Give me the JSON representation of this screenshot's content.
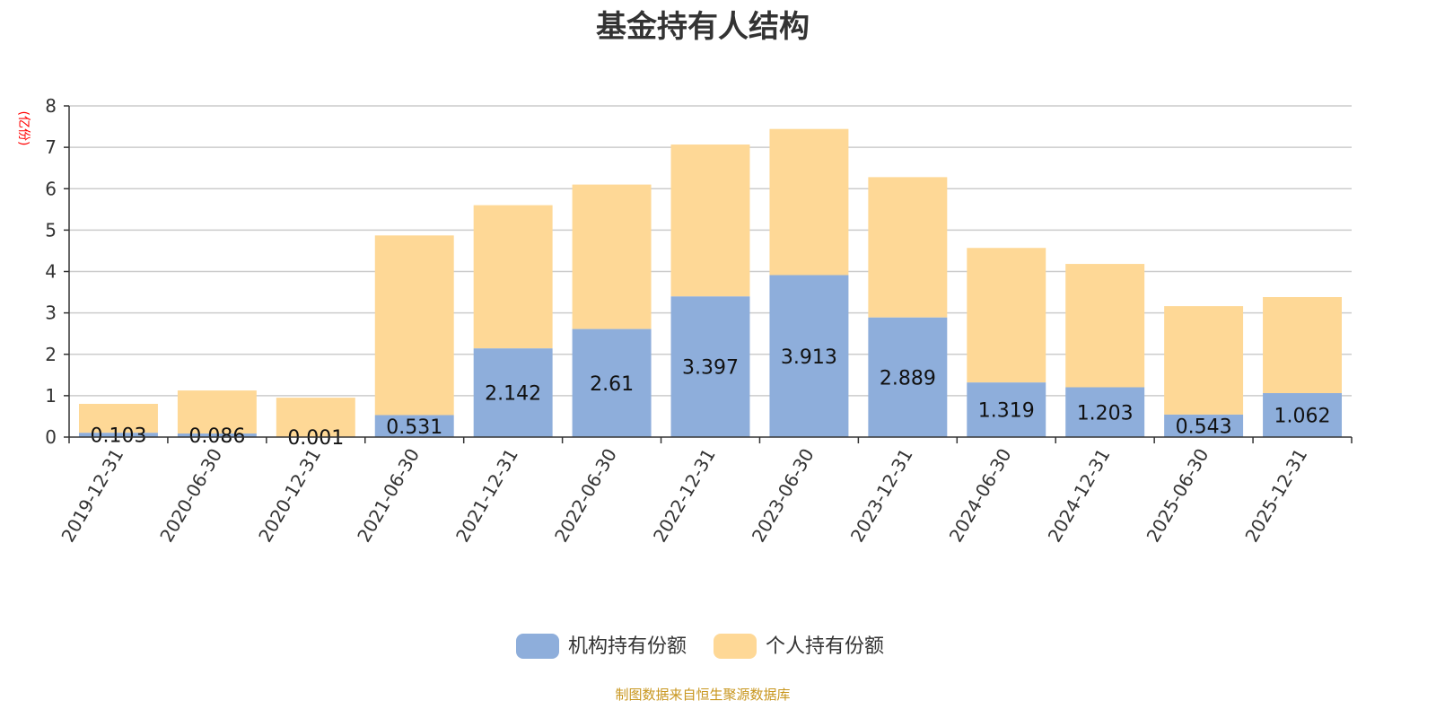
{
  "title": "基金持有人结构",
  "source_note": "制图数据来自恒生聚源数据库",
  "colors": {
    "institutional": "#8eaedb",
    "individual": "#fed896",
    "grid": "#cccccc",
    "axis": "#333333",
    "unit": "#ff0000",
    "source": "#c8961e"
  },
  "chart_data": {
    "type": "bar",
    "stacked": true,
    "title": "基金持有人结构",
    "ylabel": "(亿份)",
    "xlabel": "",
    "ylim": [
      0,
      8
    ],
    "yticks": [
      0,
      1,
      2,
      3,
      4,
      5,
      6,
      7,
      8
    ],
    "grid": true,
    "legend_position": "bottom-center",
    "categories": [
      "2019-12-31",
      "2020-06-30",
      "2020-12-31",
      "2021-06-30",
      "2021-12-31",
      "2022-06-30",
      "2022-12-31",
      "2023-06-30",
      "2023-12-31",
      "2024-06-30",
      "2024-12-31",
      "2025-06-30",
      "2025-12-31"
    ],
    "series": [
      {
        "name": "机构持有份额",
        "color": "#8eaedb",
        "values": [
          0.103,
          0.086,
          0.001,
          0.531,
          2.142,
          2.61,
          3.397,
          3.913,
          2.889,
          1.319,
          1.203,
          0.543,
          1.062
        ],
        "labels": [
          "0.103",
          "0.086",
          "0.001",
          "0.531",
          "2.142",
          "2.61",
          "3.397",
          "3.913",
          "2.889",
          "1.319",
          "1.203",
          "0.543",
          "1.062"
        ]
      },
      {
        "name": "个人持有份额",
        "color": "#fed896",
        "values": [
          0.7,
          1.04,
          0.95,
          4.34,
          3.46,
          3.49,
          3.67,
          3.53,
          3.39,
          3.25,
          2.98,
          2.62,
          2.32
        ]
      }
    ]
  }
}
